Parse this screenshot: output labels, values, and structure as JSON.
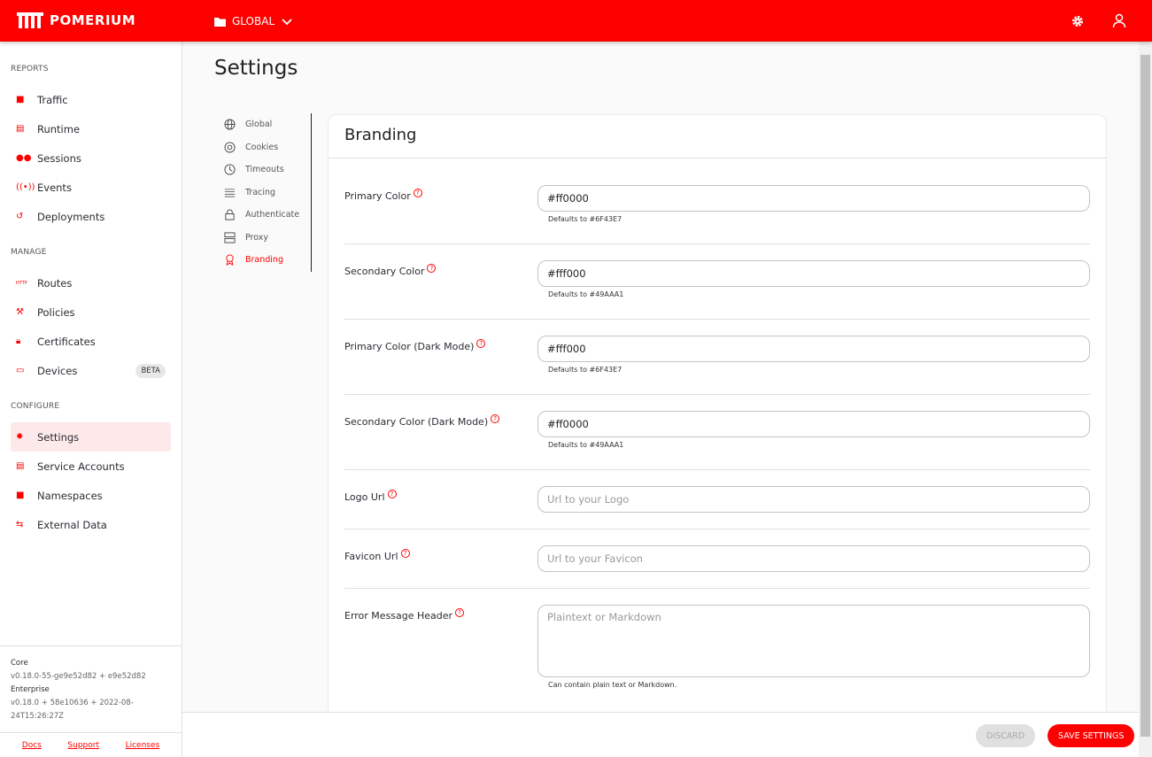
{
  "header": {
    "brand": "POMERIUM",
    "namespace": "GLOBAL",
    "icons": [
      "folder-icon",
      "chevron-down-icon",
      "gear-icon",
      "user-icon"
    ]
  },
  "sidebar": {
    "sections": [
      {
        "title": "REPORTS",
        "items": [
          {
            "label": "Traffic",
            "icon": "chart-icon"
          },
          {
            "label": "Runtime",
            "icon": "server-icon"
          },
          {
            "label": "Sessions",
            "icon": "users-icon"
          },
          {
            "label": "Events",
            "icon": "broadcast-icon"
          },
          {
            "label": "Deployments",
            "icon": "history-icon"
          }
        ]
      },
      {
        "title": "MANAGE",
        "items": [
          {
            "label": "Routes",
            "icon": "http-icon"
          },
          {
            "label": "Policies",
            "icon": "gavel-icon"
          },
          {
            "label": "Certificates",
            "icon": "lock-icon"
          },
          {
            "label": "Devices",
            "icon": "devices-icon",
            "badge": "BETA"
          }
        ]
      },
      {
        "title": "CONFIGURE",
        "items": [
          {
            "label": "Settings",
            "icon": "gear-icon",
            "active": true
          },
          {
            "label": "Service Accounts",
            "icon": "server-icon"
          },
          {
            "label": "Namespaces",
            "icon": "folder-icon"
          },
          {
            "label": "External Data",
            "icon": "data-icon"
          }
        ]
      }
    ],
    "version": {
      "core_label": "Core",
      "core": "v0.18.0-55-ge9e52d82 + e9e52d82",
      "enterprise_label": "Enterprise",
      "enterprise": "v0.18.0 + 58e10636 + 2022-08-24T15:26:27Z"
    },
    "links": [
      "Docs",
      "Support",
      "Licenses"
    ]
  },
  "page": {
    "title": "Settings"
  },
  "subnav": [
    {
      "label": "Global",
      "icon": "globe-icon"
    },
    {
      "label": "Cookies",
      "icon": "cookie-icon"
    },
    {
      "label": "Timeouts",
      "icon": "clock-icon"
    },
    {
      "label": "Tracing",
      "icon": "lines-icon"
    },
    {
      "label": "Authenticate",
      "icon": "lock-icon"
    },
    {
      "label": "Proxy",
      "icon": "server-icon"
    },
    {
      "label": "Branding",
      "icon": "award-icon",
      "active": true
    }
  ],
  "card": {
    "title": "Branding",
    "fields": [
      {
        "label": "Primary Color",
        "value": "#ff0000",
        "placeholder": "",
        "hint": "Defaults to #6F43E7"
      },
      {
        "label": "Secondary Color",
        "value": "#fff000",
        "placeholder": "",
        "hint": "Defaults to #49AAA1"
      },
      {
        "label": "Primary Color (Dark Mode)",
        "value": "#fff000",
        "placeholder": "",
        "hint": "Defaults to #6F43E7"
      },
      {
        "label": "Secondary Color (Dark Mode)",
        "value": "#ff0000",
        "placeholder": "",
        "hint": "Defaults to #49AAA1"
      },
      {
        "label": "Logo Url",
        "value": "",
        "placeholder": "Url to your Logo",
        "hint": ""
      },
      {
        "label": "Favicon Url",
        "value": "",
        "placeholder": "Url to your Favicon",
        "hint": ""
      },
      {
        "label": "Error Message Header",
        "value": "",
        "placeholder": "Plaintext or Markdown",
        "hint": "Can contain plain text or Markdown."
      }
    ]
  },
  "footer": {
    "discard": "DISCARD",
    "save": "SAVE SETTINGS"
  },
  "colors": {
    "brand": "#ff0000",
    "active_bg": "#fde9ea",
    "discard_bg": "#e0e0e0"
  }
}
